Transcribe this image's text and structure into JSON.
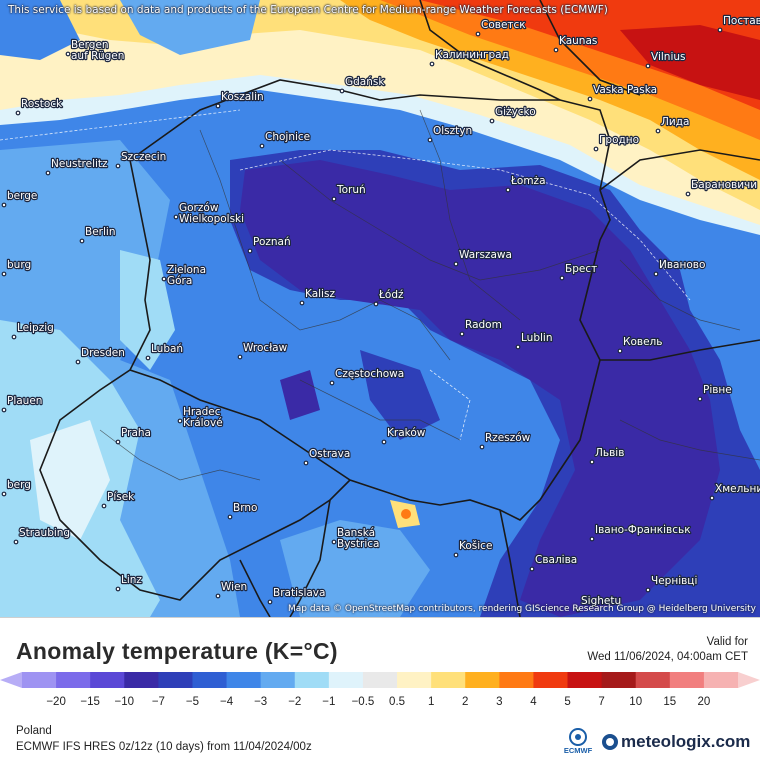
{
  "banner": "This service is based on data and products of the European Centre for Medium-range Weather Forecasts (ECMWF)",
  "attribution": "Map data © OpenStreetMap contributors, rendering GIScience Research Group @ Heidelberg University",
  "legend": {
    "title": "Anomaly temperature (K=°C)",
    "valid_label": "Valid for",
    "valid_time": "Wed 11/06/2024, 04:00am CET",
    "region": "Poland",
    "model": "ECMWF IFS HRES 0z/12z (10 days) from 11/04/2024/00z",
    "ecmwf_logo_text": "ECMWF",
    "brand": "meteologix.com",
    "ticks": [
      "−20",
      "−15",
      "−10",
      "−7",
      "−5",
      "−4",
      "−3",
      "−2",
      "−1",
      "−0.5",
      "0.5",
      "1",
      "2",
      "3",
      "4",
      "5",
      "7",
      "10",
      "15",
      "20"
    ],
    "colors": [
      "#9e93f2",
      "#7b6bea",
      "#5b48d6",
      "#3a2aa6",
      "#2e3fb8",
      "#2f5fd3",
      "#3f86e8",
      "#63aaf0",
      "#a0dcf6",
      "#dff3fb",
      "#e9e9e9",
      "#fff2c4",
      "#ffe07a",
      "#ffb01f",
      "#ff7a14",
      "#f03a0f",
      "#c71212",
      "#a51a1a",
      "#d44a4a",
      "#f17e7e",
      "#f6b2b2"
    ]
  },
  "cities": [
    {
      "name": "Советск",
      "icon": "city-dot"
    },
    {
      "name": "Kaunas",
      "icon": "city-dot"
    },
    {
      "name": "Vilnius",
      "icon": "city-dot"
    },
    {
      "name": "Поставы",
      "icon": "city-dot"
    },
    {
      "name": "Калининград",
      "icon": "city-dot"
    },
    {
      "name": "Vaska Paska",
      "icon": "city-dot"
    },
    {
      "name": "Лида",
      "icon": "city-dot"
    },
    {
      "name": "Bergen auf Rügen",
      "icon": "city-dot"
    },
    {
      "name": "Rostock",
      "icon": "city-dot"
    },
    {
      "name": "Gdańsk",
      "icon": "city-dot"
    },
    {
      "name": "Koszalin",
      "icon": "city-dot"
    },
    {
      "name": "Giżycko",
      "icon": "city-dot"
    },
    {
      "name": "Olsztyn",
      "icon": "city-dot"
    },
    {
      "name": "Chojnice",
      "icon": "city-dot"
    },
    {
      "name": "Гродно",
      "icon": "city-dot"
    },
    {
      "name": "Neustrelitz",
      "icon": "city-dot"
    },
    {
      "name": "Szczecin",
      "icon": "city-dot"
    },
    {
      "name": "Łomża",
      "icon": "city-dot"
    },
    {
      "name": "Барановичи",
      "icon": "city-dot"
    },
    {
      "name": "Toruń",
      "icon": "city-dot"
    },
    {
      "name": "berge",
      "icon": "city-dot"
    },
    {
      "name": "Gorzów Wielkopolski",
      "icon": "city-dot"
    },
    {
      "name": "Berlin",
      "icon": "city-dot"
    },
    {
      "name": "Poznań",
      "icon": "city-dot"
    },
    {
      "name": "Warszawa",
      "icon": "city-dot"
    },
    {
      "name": "Брест",
      "icon": "city-dot"
    },
    {
      "name": "Иваново",
      "icon": "city-dot"
    },
    {
      "name": "burg",
      "icon": "city-dot"
    },
    {
      "name": "Zielona Góra",
      "icon": "city-dot"
    },
    {
      "name": "Kalisz",
      "icon": "city-dot"
    },
    {
      "name": "Łódź",
      "icon": "city-dot"
    },
    {
      "name": "Radom",
      "icon": "city-dot"
    },
    {
      "name": "Leipzig",
      "icon": "city-dot"
    },
    {
      "name": "Lublin",
      "icon": "city-dot"
    },
    {
      "name": "Ковель",
      "icon": "city-dot"
    },
    {
      "name": "Dresden",
      "icon": "city-dot"
    },
    {
      "name": "Lubań",
      "icon": "city-dot"
    },
    {
      "name": "Wrocław",
      "icon": "city-dot"
    },
    {
      "name": "Częstochowa",
      "icon": "city-dot"
    },
    {
      "name": "Рівне",
      "icon": "city-dot"
    },
    {
      "name": "Plauen",
      "icon": "city-dot"
    },
    {
      "name": "Hradec Králové",
      "icon": "city-dot"
    },
    {
      "name": "Kraków",
      "icon": "city-dot"
    },
    {
      "name": "Rzeszów",
      "icon": "city-dot"
    },
    {
      "name": "Praha",
      "icon": "city-dot"
    },
    {
      "name": "Ostrava",
      "icon": "city-dot"
    },
    {
      "name": "Львів",
      "icon": "city-dot"
    },
    {
      "name": "Хмельни",
      "icon": "city-dot"
    },
    {
      "name": "berg",
      "icon": "city-dot"
    },
    {
      "name": "Písek",
      "icon": "city-dot"
    },
    {
      "name": "Brno",
      "icon": "city-dot"
    },
    {
      "name": "Straubing",
      "icon": "city-dot"
    },
    {
      "name": "Banská Bystrica",
      "icon": "city-dot"
    },
    {
      "name": "Košice",
      "icon": "city-dot"
    },
    {
      "name": "Івано-Франківськ",
      "icon": "city-dot"
    },
    {
      "name": "Сваліва",
      "icon": "city-dot"
    },
    {
      "name": "Linz",
      "icon": "city-dot"
    },
    {
      "name": "Wien",
      "icon": "city-dot"
    },
    {
      "name": "Bratislava",
      "icon": "city-dot"
    },
    {
      "name": "Чернівці",
      "icon": "city-dot"
    },
    {
      "name": "Sighetu",
      "icon": "city-dot"
    }
  ]
}
